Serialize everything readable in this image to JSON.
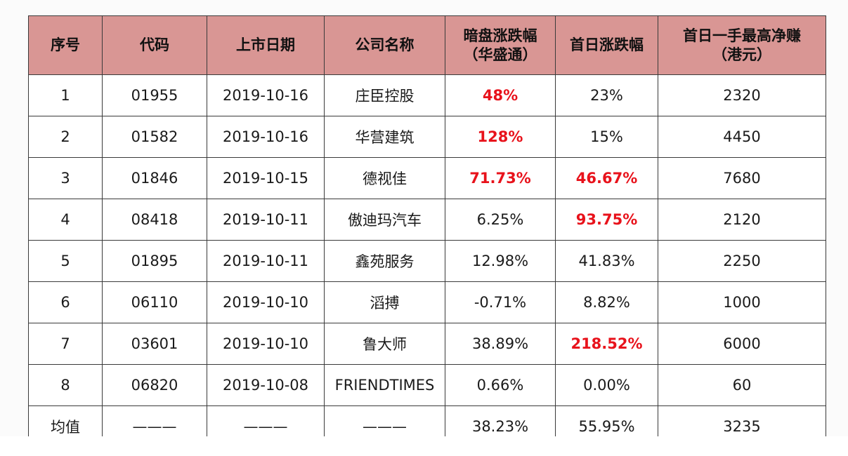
{
  "table": {
    "headers": [
      {
        "line1": "序号",
        "line2": ""
      },
      {
        "line1": "代码",
        "line2": ""
      },
      {
        "line1": "上市日期",
        "line2": ""
      },
      {
        "line1": "公司名称",
        "line2": ""
      },
      {
        "line1": "暗盘涨跌幅",
        "line2": "（华盛通）"
      },
      {
        "line1": "首日涨跌幅",
        "line2": ""
      },
      {
        "line1": "首日一手最高净赚",
        "line2": "（港元）"
      }
    ],
    "rows": [
      {
        "idx": "1",
        "code": "01955",
        "date": "2019-10-16",
        "name": "庄臣控股",
        "grey": "48%",
        "first": "23%",
        "profit": "2320",
        "grey_hl": true,
        "first_hl": false
      },
      {
        "idx": "2",
        "code": "01582",
        "date": "2019-10-16",
        "name": "华营建筑",
        "grey": "128%",
        "first": "15%",
        "profit": "4450",
        "grey_hl": true,
        "first_hl": false
      },
      {
        "idx": "3",
        "code": "01846",
        "date": "2019-10-15",
        "name": "德视佳",
        "grey": "71.73%",
        "first": "46.67%",
        "profit": "7680",
        "grey_hl": true,
        "first_hl": true
      },
      {
        "idx": "4",
        "code": "08418",
        "date": "2019-10-11",
        "name": "傲迪玛汽车",
        "grey": "6.25%",
        "first": "93.75%",
        "profit": "2120",
        "grey_hl": false,
        "first_hl": true
      },
      {
        "idx": "5",
        "code": "01895",
        "date": "2019-10-11",
        "name": "鑫苑服务",
        "grey": "12.98%",
        "first": "41.83%",
        "profit": "2250",
        "grey_hl": false,
        "first_hl": false
      },
      {
        "idx": "6",
        "code": "06110",
        "date": "2019-10-10",
        "name": "滔搏",
        "grey": "-0.71%",
        "first": "8.82%",
        "profit": "1000",
        "grey_hl": false,
        "first_hl": false
      },
      {
        "idx": "7",
        "code": "03601",
        "date": "2019-10-10",
        "name": "鲁大师",
        "grey": "38.89%",
        "first": "218.52%",
        "profit": "6000",
        "grey_hl": false,
        "first_hl": true
      },
      {
        "idx": "8",
        "code": "06820",
        "date": "2019-10-08",
        "name": "FRIENDTIMES",
        "grey": "0.66%",
        "first": "0.00%",
        "profit": "60",
        "grey_hl": false,
        "first_hl": false
      },
      {
        "idx": "均值",
        "code": "———",
        "date": "———",
        "name": "———",
        "grey": "38.23%",
        "first": "55.95%",
        "profit": "3235",
        "grey_hl": false,
        "first_hl": false
      }
    ]
  },
  "colors": {
    "header_bg": "#d99694",
    "highlight_text": "#e8121b"
  }
}
